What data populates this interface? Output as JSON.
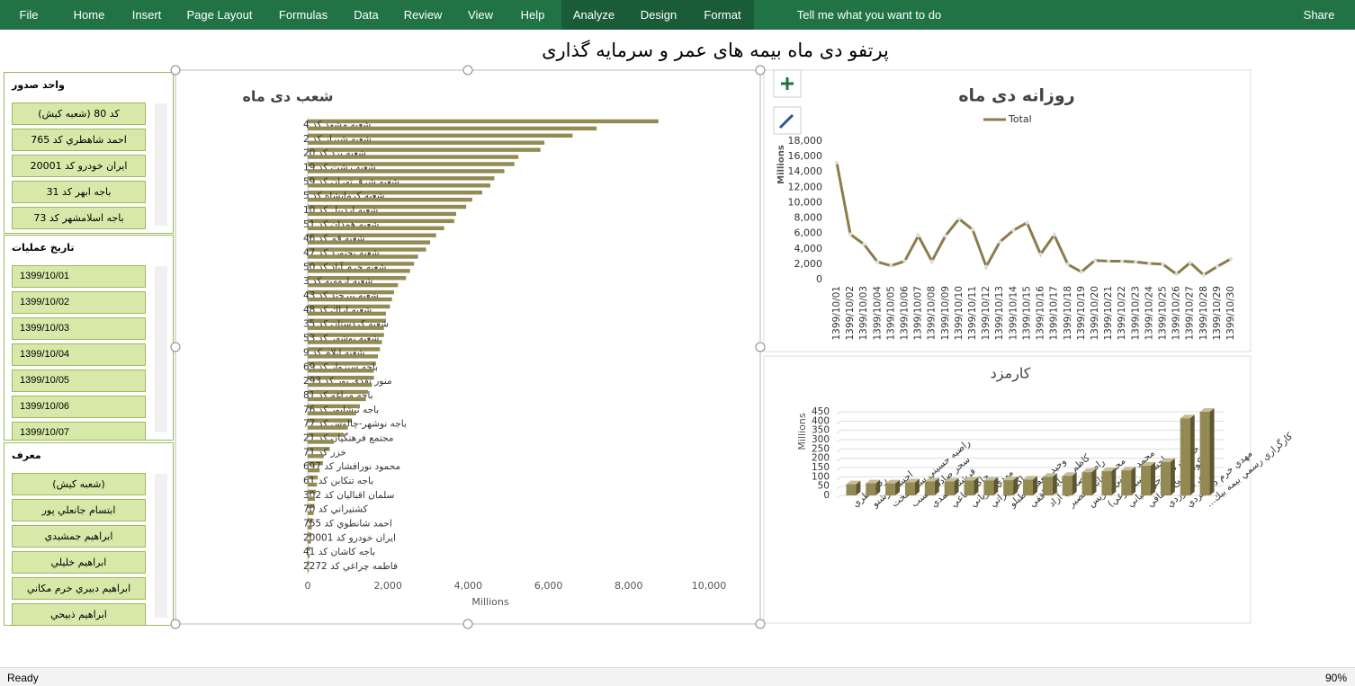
{
  "ribbon": {
    "tabs": [
      "File",
      "Home",
      "Insert",
      "Page Layout",
      "Formulas",
      "Data",
      "Review",
      "View",
      "Help",
      "Analyze",
      "Design",
      "Format"
    ],
    "tell_me": "Tell me what you want to do",
    "share": "Share"
  },
  "title": "پرتفو دی ماه  بیمه های عمر و سرمایه گذاری",
  "slicers": [
    {
      "title": "واحد صدور",
      "items": [
        "(شعبه کیش) کد 80",
        "احمد شاهطري كد 765",
        "ايران خودرو كد 20001",
        "باجه ابهر كد 31",
        "باجه اسلامشهر كد 73"
      ]
    },
    {
      "title": "تاريخ عمليات",
      "items": [
        "1399/10/01",
        "1399/10/02",
        "1399/10/03",
        "1399/10/04",
        "1399/10/05",
        "1399/10/06",
        "1399/10/07"
      ]
    },
    {
      "title": "معرف",
      "items": [
        "(شعبه کیش)",
        "ابتسام جانعلي پور",
        "ابراهيم جمشيدي",
        "ابراهيم خليلي",
        "ابراهيم دبيري خرم مكاني",
        "ابراهيم ذبيحي"
      ]
    }
  ],
  "chart_data": [
    {
      "type": "hbar",
      "title": "شعب دی ماه",
      "xlabel": "Millions",
      "color": "#948a54",
      "grid": false,
      "categories": [
        "شعبه مشهد كد 4",
        null,
        "شعبه شيراز كد 2",
        null,
        "شعبه يزد كد 20",
        null,
        "شعبه رشت كد 19",
        null,
        "شعبه شرق تهران كد 59",
        null,
        "شعبه كرمانشاه كد 5",
        null,
        "شعبه اردبيل كد 10",
        null,
        "شعبه همدان كد 51",
        null,
        "شعبه قم كد 46",
        null,
        "شعبه بجنورد كد 47",
        null,
        "شعبه خرم آباد كد 50",
        null,
        "شعبه اروميه كد 3",
        null,
        "شعبه بيرجند كد 43",
        null,
        "شعبه اراك كد 48",
        null,
        "شعبه كردستان كد 35",
        null,
        "شعبه بوشهر كد 53",
        null,
        "شعبه ايلام كد 9",
        null,
        "باجه سبزوار كد 69",
        null,
        "منور نقدي پور كد 293",
        null,
        "باجه مراغه كد 81",
        null,
        "باجه نيشابور كد 76",
        null,
        "باجه نوشهر-چالوس كد 77",
        null,
        "مجتمع فرهنگيان كد 21",
        null,
        "خزر كد 71",
        null,
        "محمود نورافشار كد 697",
        null,
        "باجه تنكابن كد 61",
        null,
        "سلمان اقباليان كد 302",
        null,
        "كشتيراني كد 70",
        null,
        "احمد شانطوي كد 765",
        null,
        "ايران خودرو كد 20001",
        null,
        "باجه كاشان كد 41",
        null,
        "فاطمه چراغي كد 2272",
        null
      ],
      "values": [
        8740,
        7200,
        6600,
        5900,
        5800,
        5250,
        5150,
        4900,
        4650,
        4550,
        4350,
        4100,
        3950,
        3700,
        3650,
        3400,
        3200,
        3050,
        2950,
        2750,
        2650,
        2550,
        2450,
        2250,
        2150,
        2100,
        2050,
        1950,
        1950,
        1900,
        1900,
        1850,
        1800,
        1750,
        1700,
        1650,
        1650,
        1600,
        1500,
        1450,
        1300,
        1200,
        1100,
        1000,
        900,
        650,
        550,
        400,
        380,
        300,
        250,
        230,
        200,
        180,
        170,
        150,
        120,
        100,
        90,
        80,
        60,
        50,
        40,
        30
      ],
      "xlim": [
        0,
        10000
      ],
      "xticks": [
        0,
        {
          "value": 2000,
          "label": "2,000"
        },
        {
          "value": 4000,
          "label": "4,000"
        },
        {
          "value": 6000,
          "label": "6,000"
        },
        {
          "value": 8000,
          "label": "8,000"
        },
        {
          "value": 10000,
          "label": "10,000"
        }
      ]
    },
    {
      "type": "line",
      "title": "روزانه دی ماه",
      "ylabel": "Millions",
      "grid": false,
      "categories": [
        "1399/10/01",
        "1399/10/02",
        "1399/10/03",
        "1399/10/04",
        "1399/10/05",
        "1399/10/06",
        "1399/10/07",
        "1399/10/08",
        "1399/10/09",
        "1399/10/10",
        "1399/10/11",
        "1399/10/12",
        "1399/10/13",
        "1399/10/14",
        "1399/10/15",
        "1399/10/16",
        "1399/10/17",
        "1399/10/18",
        "1399/10/19",
        "1399/10/20",
        "1399/10/21",
        "1399/10/22",
        "1399/10/23",
        "1399/10/24",
        "1399/10/25",
        "1399/10/26",
        "1399/10/27",
        "1399/10/28",
        "1399/10/29",
        "1399/10/30"
      ],
      "series": [
        {
          "name": "Total",
          "color": "#8b7d4b",
          "values": [
            15200,
            5900,
            4600,
            2300,
            1800,
            2400,
            5700,
            2400,
            5700,
            7900,
            6500,
            1700,
            4900,
            6400,
            7400,
            3300,
            5800,
            2000,
            1000,
            2500,
            2400,
            2400,
            2300,
            2100,
            2000,
            700,
            2200,
            600,
            1700,
            2700
          ]
        }
      ],
      "ylim": [
        0,
        18000
      ],
      "yticks": [
        0,
        {
          "value": 2000,
          "label": "2,000"
        },
        {
          "value": 4000,
          "label": "4,000"
        },
        {
          "value": 6000,
          "label": "6,000"
        },
        {
          "value": 8000,
          "label": "8,000"
        },
        {
          "value": 10000,
          "label": "10,000"
        },
        {
          "value": 12000,
          "label": "12,000"
        },
        {
          "value": 14000,
          "label": "14,000"
        },
        {
          "value": 16000,
          "label": "16,000"
        },
        {
          "value": 18000,
          "label": "18,000"
        }
      ]
    },
    {
      "type": "bar3d",
      "title": "کارمزد",
      "ylabel": "Millions",
      "color": "#938953",
      "grid": true,
      "categories": [
        "رضا نظري",
        "احسان رشنو",
        "راضيه حسيني سي سخت",
        "سحر صادقي نسب",
        "فرشته احمدي",
        "حاكم ساعي",
        "مهدي فارياني",
        "اكرم براتي",
        "وحيد جعفري طبلو",
        "كاظم رضايي باقفي",
        "راضيه صابري آزاد",
        "محمد جانكي نصير",
        "محمد حسيني سريس",
        "احسان سلوچوغي)",
        "حاميان شيخ جز اسياني",
        "شكوفه شيخ شفافي",
        "مهدي اله وردي",
        "مهدي خرم دستجردي",
        "كارگزاري رسمي بيمه بيك..."
      ],
      "values": [
        60,
        65,
        65,
        70,
        75,
        75,
        80,
        80,
        82,
        85,
        100,
        105,
        125,
        130,
        135,
        160,
        180,
        415,
        450
      ],
      "ylim": [
        0,
        450
      ],
      "yticks": [
        0,
        50,
        100,
        150,
        200,
        250,
        300,
        350,
        400,
        450
      ]
    }
  ],
  "status_bar": {
    "status": "Ready",
    "zoom": "90%"
  }
}
